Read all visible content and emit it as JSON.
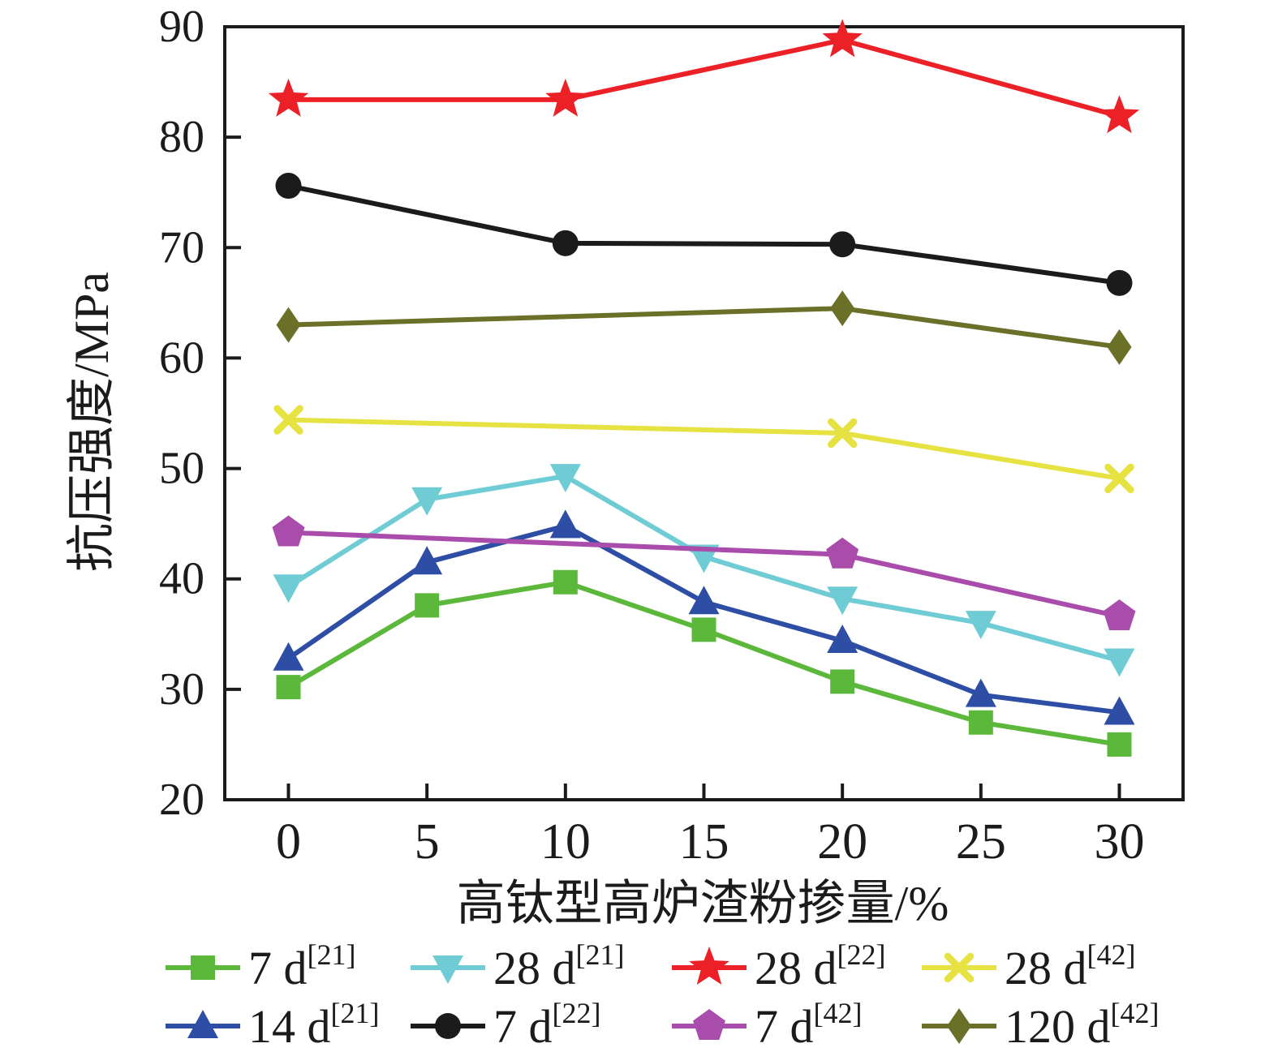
{
  "chart_data": {
    "type": "line",
    "title": "",
    "xlabel": "高钛型高炉渣粉掺量/%",
    "ylabel": "抗压强度/MPa",
    "xlim": [
      -2.3,
      32.3
    ],
    "ylim": [
      20,
      90
    ],
    "xticks": [
      0,
      5,
      10,
      15,
      20,
      25,
      30
    ],
    "yticks": [
      20,
      30,
      40,
      50,
      60,
      70,
      80,
      90
    ],
    "grid": false,
    "legend_position": "bottom",
    "series": [
      {
        "name": "7 d",
        "ref": "[21]",
        "marker": "square",
        "color": "#5cb83a",
        "x": [
          0,
          5,
          10,
          15,
          20,
          25,
          30
        ],
        "values": [
          30.2,
          37.6,
          39.7,
          35.4,
          30.7,
          27.0,
          25.0
        ]
      },
      {
        "name": "14 d",
        "ref": "[21]",
        "marker": "triangle-up",
        "color": "#2e4ea6",
        "x": [
          0,
          5,
          10,
          15,
          20,
          25,
          30
        ],
        "values": [
          32.8,
          41.5,
          44.8,
          37.9,
          34.4,
          29.5,
          27.9
        ]
      },
      {
        "name": "28 d",
        "ref": "[21]",
        "marker": "triangle-down",
        "color": "#6fccd5",
        "x": [
          0,
          5,
          10,
          15,
          20,
          25,
          30
        ],
        "values": [
          39.3,
          47.2,
          49.3,
          42.0,
          38.2,
          36.0,
          32.6
        ]
      },
      {
        "name": "28 d",
        "ref": "[22]",
        "marker": "star",
        "color": "#ec2127",
        "x": [
          0,
          10,
          20,
          30
        ],
        "values": [
          83.4,
          83.4,
          88.8,
          81.9
        ]
      },
      {
        "name": "7 d",
        "ref": "[22]",
        "marker": "circle",
        "color": "#1b1b1b",
        "x": [
          0,
          10,
          20,
          30
        ],
        "values": [
          75.6,
          70.4,
          70.3,
          66.8
        ]
      },
      {
        "name": "28 d",
        "ref": "[42]",
        "marker": "x",
        "color": "#e5e242",
        "x": [
          0,
          20,
          30
        ],
        "values": [
          54.4,
          53.2,
          49.1
        ]
      },
      {
        "name": "7 d",
        "ref": "[42]",
        "marker": "pentagon",
        "color": "#a94cab",
        "x": [
          0,
          20,
          30
        ],
        "values": [
          44.2,
          42.2,
          36.6
        ]
      },
      {
        "name": "120 d",
        "ref": "[42]",
        "marker": "diamond",
        "color": "#6b7028",
        "x": [
          0,
          20,
          30
        ],
        "values": [
          63.0,
          64.5,
          61.0
        ]
      }
    ],
    "legend": {
      "rows": [
        [
          0,
          2,
          3,
          5
        ],
        [
          1,
          4,
          6,
          7
        ]
      ]
    }
  }
}
